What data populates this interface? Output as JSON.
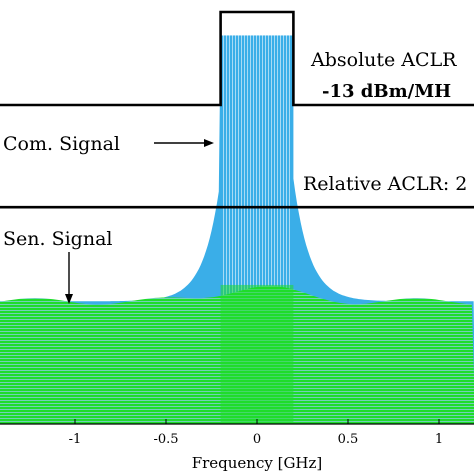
{
  "chart_data": {
    "type": "area",
    "xlabel": "Frequency [GHz]",
    "ylabel": "",
    "xlim": [
      -1.4,
      1.1
    ],
    "x_ticks": [
      {
        "value": -1,
        "label": "-1"
      },
      {
        "value": -0.5,
        "label": "-0.5"
      },
      {
        "value": 0,
        "label": "0"
      },
      {
        "value": 0.5,
        "label": "0.5"
      },
      {
        "value": 1,
        "label": "1"
      }
    ],
    "mask_band": [
      -0.2,
      0.2
    ],
    "series": [
      {
        "color": "#3aaee8",
        "peak_level": 0.95,
        "skirt_edge_level": 0.32
      },
      {
        "color": "#1fdc2c",
        "top_level": 0.32,
        "bottom_level": 0.0
      }
    ],
    "annotations": {
      "absolute_aclr_label": "Absolute ACLR",
      "absolute_aclr_value": "-13 dBm/MH",
      "relative_aclr_label": "Relative ACLR: 2",
      "com_signal_label": "Com. Signal",
      "sen_signal_label": "Sen. Signal"
    },
    "colors": {
      "com_signal": "#3aaee8",
      "sen_signal": "#1fdc2c",
      "mask": "#000000"
    }
  }
}
